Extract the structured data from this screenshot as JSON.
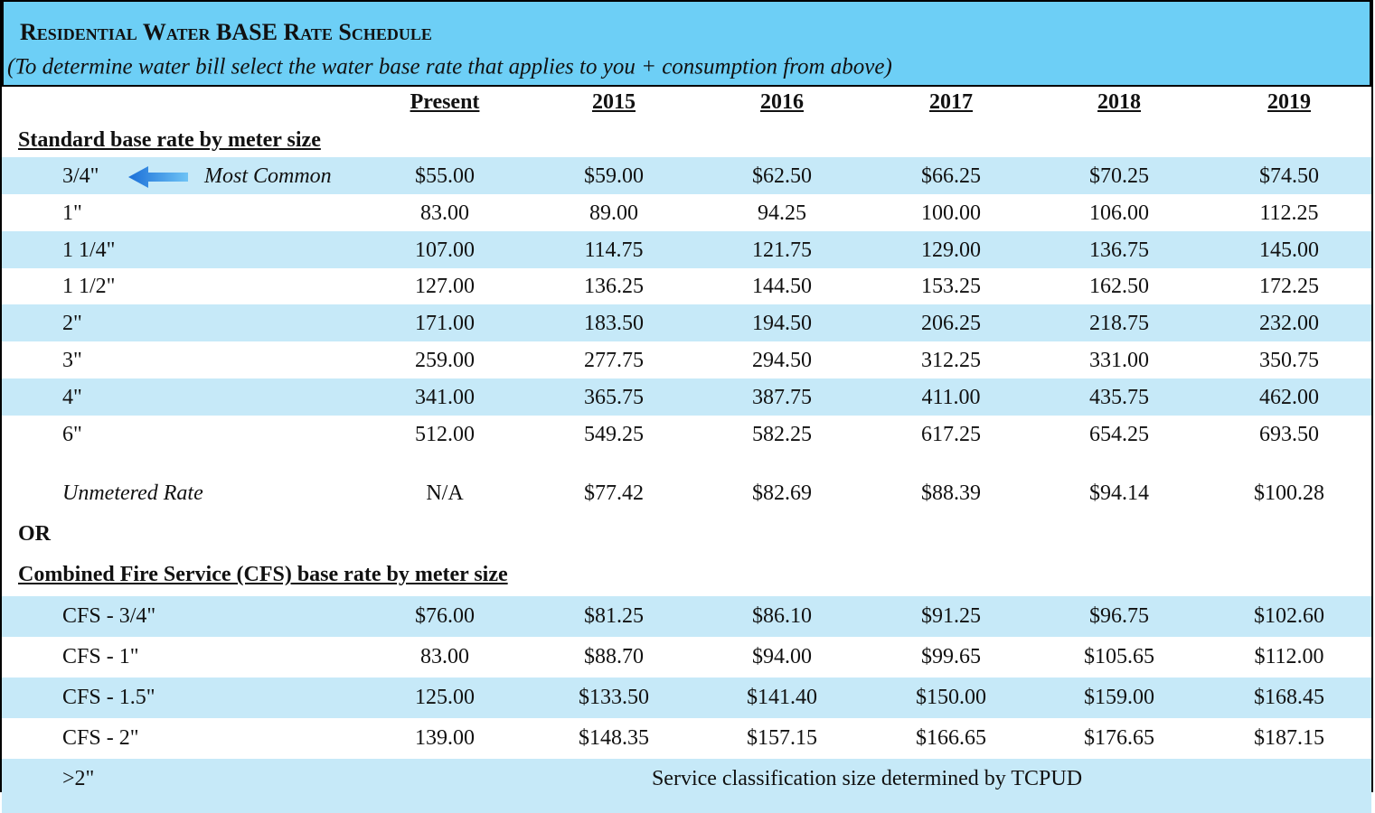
{
  "header": {
    "title": "Residential Water BASE Rate Schedule",
    "subtitle": "(To determine water bill select the water base rate that applies to you + consumption from above)"
  },
  "columns": [
    "Present",
    "2015",
    "2016",
    "2017",
    "2018",
    "2019"
  ],
  "standard": {
    "heading": "Standard base rate by meter size",
    "rows": [
      {
        "label": "3/4\"",
        "note": "Most Common",
        "values": [
          "$55.00",
          "$59.00",
          "$62.50",
          "$66.25",
          "$70.25",
          "$74.50"
        ]
      },
      {
        "label": "1\"",
        "values": [
          "83.00",
          "89.00",
          "94.25",
          "100.00",
          "106.00",
          "112.25"
        ]
      },
      {
        "label": "1 1/4\"",
        "values": [
          "107.00",
          "114.75",
          "121.75",
          "129.00",
          "136.75",
          "145.00"
        ]
      },
      {
        "label": "1 1/2\"",
        "values": [
          "127.00",
          "136.25",
          "144.50",
          "153.25",
          "162.50",
          "172.25"
        ]
      },
      {
        "label": "2\"",
        "values": [
          "171.00",
          "183.50",
          "194.50",
          "206.25",
          "218.75",
          "232.00"
        ]
      },
      {
        "label": "3\"",
        "values": [
          "259.00",
          "277.75",
          "294.50",
          "312.25",
          "331.00",
          "350.75"
        ]
      },
      {
        "label": "4\"",
        "values": [
          "341.00",
          "365.75",
          "387.75",
          "411.00",
          "435.75",
          "462.00"
        ]
      },
      {
        "label": "6\"",
        "values": [
          "512.00",
          "549.25",
          "582.25",
          "617.25",
          "654.25",
          "693.50"
        ]
      }
    ]
  },
  "unmetered": {
    "label": "Unmetered Rate",
    "values": [
      "N/A",
      "$77.42",
      "$82.69",
      "$88.39",
      "$94.14",
      "$100.28"
    ]
  },
  "separator": "OR",
  "cfs": {
    "heading": "Combined Fire Service (CFS) base rate by meter size",
    "rows": [
      {
        "label": "CFS - 3/4\"",
        "values": [
          "$76.00",
          "$81.25",
          "$86.10",
          "$91.25",
          "$96.75",
          "$102.60"
        ]
      },
      {
        "label": "CFS - 1\"",
        "values": [
          "83.00",
          "$88.70",
          "$94.00",
          "$99.65",
          "$105.65",
          "$112.00"
        ]
      },
      {
        "label": "CFS - 1.5\"",
        "values": [
          "125.00",
          "$133.50",
          "$141.40",
          "$150.00",
          "$159.00",
          "$168.45"
        ]
      },
      {
        "label": "CFS - 2\"",
        "values": [
          "139.00",
          "$148.35",
          "$157.15",
          "$166.65",
          "$176.65",
          "$187.15"
        ]
      }
    ]
  },
  "footer_row": {
    "label": ">2\"",
    "text": "Service classification size determined by TCPUD"
  }
}
